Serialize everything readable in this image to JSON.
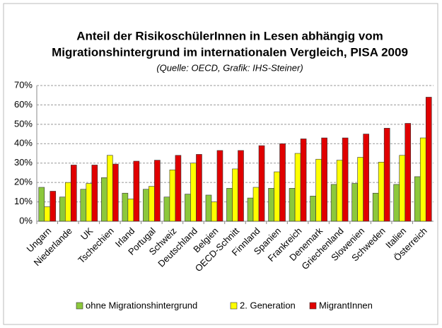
{
  "chart_data": {
    "type": "bar",
    "title": [
      "Anteil der RisikoschülerInnen in Lesen abhängig vom",
      "Migrationshintergrund im internationalen Vergleich, PISA 2009"
    ],
    "subtitle": "(Quelle: OECD, Grafik: IHS-Steiner)",
    "categories": [
      "Ungarn",
      "Niederlande",
      "UK",
      "Tschechien",
      "Irland",
      "Portugal",
      "Schweiz",
      "Deutschland",
      "Belgien",
      "OECD-Schnitt",
      "Finnland",
      "Spanien",
      "Frankreich",
      "Denemark",
      "Griechenland",
      "Slowenien",
      "Schweden",
      "Italien",
      "Österreich"
    ],
    "series": [
      {
        "name": "ohne Migrationshintergrund",
        "color": "#8cc83c",
        "values": [
          17.5,
          12.5,
          16.5,
          22.5,
          14.5,
          16.5,
          12.5,
          14,
          13.5,
          17,
          12,
          17,
          17,
          13,
          19,
          19.5,
          14.5,
          19,
          23
        ]
      },
      {
        "name": "2. Generation",
        "color": "#ffff00",
        "values": [
          7.5,
          20,
          19.5,
          34,
          11.5,
          18,
          26.5,
          30,
          10,
          27,
          17.5,
          25.5,
          35,
          32,
          31.5,
          33,
          30.5,
          34,
          43
        ]
      },
      {
        "name": "MigrantInnen",
        "color": "#e00000",
        "values": [
          15.5,
          29,
          29,
          29.5,
          31,
          31.5,
          34,
          34.5,
          36.5,
          36.5,
          39,
          40,
          42.5,
          43,
          43,
          45,
          48,
          50.5,
          64
        ]
      }
    ],
    "ylim": [
      0,
      70
    ],
    "yticks": [
      {
        "value": 0,
        "label": "0%"
      },
      {
        "value": 10,
        "label": "10%"
      },
      {
        "value": 20,
        "label": "20%"
      },
      {
        "value": 30,
        "label": "30%"
      },
      {
        "value": 40,
        "label": "40%"
      },
      {
        "value": 50,
        "label": "50%"
      },
      {
        "value": 60,
        "label": "60%"
      },
      {
        "value": 70,
        "label": "70%"
      }
    ],
    "grid": true
  }
}
